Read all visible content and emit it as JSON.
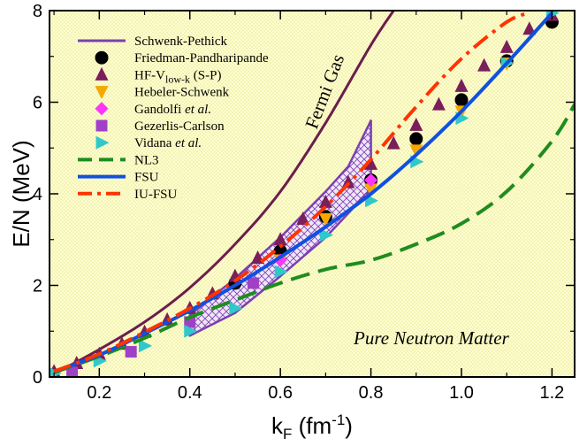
{
  "chart_data": {
    "type": "line",
    "title": "",
    "annotation": "Pure Neutron Matter",
    "curve_label": "Fermi Gas",
    "xlabel": {
      "base": "k",
      "sub": "F",
      "unit_pre": " (fm",
      "unit_sup": "-1",
      "unit_post": ")"
    },
    "ylabel": "E/N (MeV)",
    "xlim": [
      0.09,
      1.25
    ],
    "ylim": [
      0,
      8
    ],
    "xticks": [
      0.2,
      0.4,
      0.6,
      0.8,
      1.0,
      1.2
    ],
    "xtick_labels": [
      "0.2",
      "0.4",
      "0.6",
      "0.8",
      "1.0",
      "1.2"
    ],
    "yticks": [
      0,
      2,
      4,
      6,
      8
    ],
    "ytick_labels": [
      "0",
      "2",
      "4",
      "6",
      "8"
    ],
    "legend_position": "top-left",
    "series": [
      {
        "name": "Fermi Gas",
        "kind": "line",
        "color": "#6b1e4d",
        "x": [
          0.1,
          0.2,
          0.3,
          0.4,
          0.5,
          0.6,
          0.7,
          0.8,
          0.85
        ],
        "y": [
          0.07,
          0.6,
          1.2,
          1.95,
          2.9,
          4.05,
          5.55,
          7.25,
          8.0
        ]
      },
      {
        "name": "Schwenk-Pethick",
        "kind": "band",
        "color": "#7b3fb0",
        "upper_x": [
          0.4,
          0.5,
          0.6,
          0.7,
          0.75,
          0.8
        ],
        "upper_y": [
          1.35,
          2.15,
          3.05,
          4.05,
          4.6,
          5.6
        ],
        "lower_x": [
          0.4,
          0.5,
          0.6,
          0.7,
          0.8
        ],
        "lower_y": [
          0.9,
          1.4,
          2.2,
          3.05,
          4.1
        ]
      },
      {
        "name": "Friedman-Pandharipande",
        "kind": "circle",
        "color": "#000000",
        "x": [
          0.5,
          0.6,
          0.7,
          0.8,
          0.9,
          1.0,
          1.1,
          1.2
        ],
        "y": [
          2.05,
          2.75,
          3.5,
          4.3,
          5.2,
          6.05,
          6.9,
          7.75
        ]
      },
      {
        "name": "HF-V",
        "name_sub": "low-k",
        "name_post": " (S-P)",
        "kind": "triangle-up",
        "color": "#7a1f5a",
        "x": [
          0.1,
          0.15,
          0.2,
          0.25,
          0.3,
          0.35,
          0.4,
          0.45,
          0.5,
          0.55,
          0.6,
          0.65,
          0.7,
          0.75,
          0.8,
          0.85,
          0.9,
          0.95,
          1.0,
          1.05,
          1.1,
          1.15,
          1.2
        ],
        "y": [
          0.12,
          0.3,
          0.5,
          0.72,
          0.98,
          1.25,
          1.5,
          1.82,
          2.2,
          2.6,
          3.0,
          3.45,
          3.82,
          4.25,
          4.65,
          5.1,
          5.5,
          5.95,
          6.35,
          6.8,
          7.2,
          7.6,
          7.9
        ]
      },
      {
        "name": "Hebeler-Schwenk",
        "kind": "triangle-down",
        "color": "#f5a800",
        "x": [
          0.6,
          0.7,
          0.8,
          0.9,
          1.0,
          1.1
        ],
        "y": [
          2.55,
          3.45,
          4.1,
          4.95,
          5.8,
          6.85
        ]
      },
      {
        "name": "Gandolfi et al.",
        "name_main": "Gandolfi ",
        "name_it": "et al.",
        "kind": "diamond",
        "color": "#ff33ff",
        "x": [
          0.6,
          0.8
        ],
        "y": [
          2.55,
          4.3
        ]
      },
      {
        "name": "Gezerlis-Carlson",
        "kind": "square",
        "color": "#a040c8",
        "x": [
          0.14,
          0.27,
          0.4,
          0.54
        ],
        "y": [
          0.1,
          0.55,
          1.2,
          2.05
        ]
      },
      {
        "name": "Vidana et al.",
        "name_main": "Vidana ",
        "name_it": "et al.",
        "kind": "triangle-right",
        "color": "#30c8c8",
        "x": [
          0.1,
          0.2,
          0.3,
          0.4,
          0.5,
          0.6,
          0.7,
          0.8,
          0.9,
          1.0,
          1.1,
          1.2
        ],
        "y": [
          0.08,
          0.35,
          0.68,
          1.0,
          1.5,
          2.3,
          3.1,
          3.85,
          4.7,
          5.65,
          6.85,
          7.95
        ]
      },
      {
        "name": "NL3",
        "kind": "line",
        "dash": "dash",
        "color": "#1f8c1f",
        "x": [
          0.1,
          0.2,
          0.3,
          0.4,
          0.5,
          0.6,
          0.7,
          0.8,
          0.9,
          1.0,
          1.1,
          1.2,
          1.25
        ],
        "y": [
          0.1,
          0.45,
          0.85,
          1.3,
          1.68,
          2.05,
          2.35,
          2.55,
          2.9,
          3.35,
          4.05,
          5.15,
          5.95
        ]
      },
      {
        "name": "FSU",
        "kind": "line",
        "dash": "solid",
        "color": "#1050e0",
        "x": [
          0.1,
          0.2,
          0.3,
          0.4,
          0.5,
          0.6,
          0.7,
          0.8,
          0.9,
          1.0,
          1.1,
          1.2
        ],
        "y": [
          0.12,
          0.48,
          0.95,
          1.45,
          2.0,
          2.62,
          3.28,
          4.0,
          4.85,
          5.8,
          6.85,
          7.95
        ]
      },
      {
        "name": "IU-FSU",
        "kind": "line",
        "dash": "dashdot",
        "color": "#ff3300",
        "x": [
          0.1,
          0.2,
          0.3,
          0.4,
          0.5,
          0.6,
          0.7,
          0.8,
          0.9,
          1.0,
          1.1,
          1.15
        ],
        "y": [
          0.12,
          0.5,
          0.98,
          1.5,
          2.1,
          2.85,
          3.72,
          4.75,
          5.9,
          6.95,
          7.75,
          7.95
        ]
      }
    ]
  }
}
